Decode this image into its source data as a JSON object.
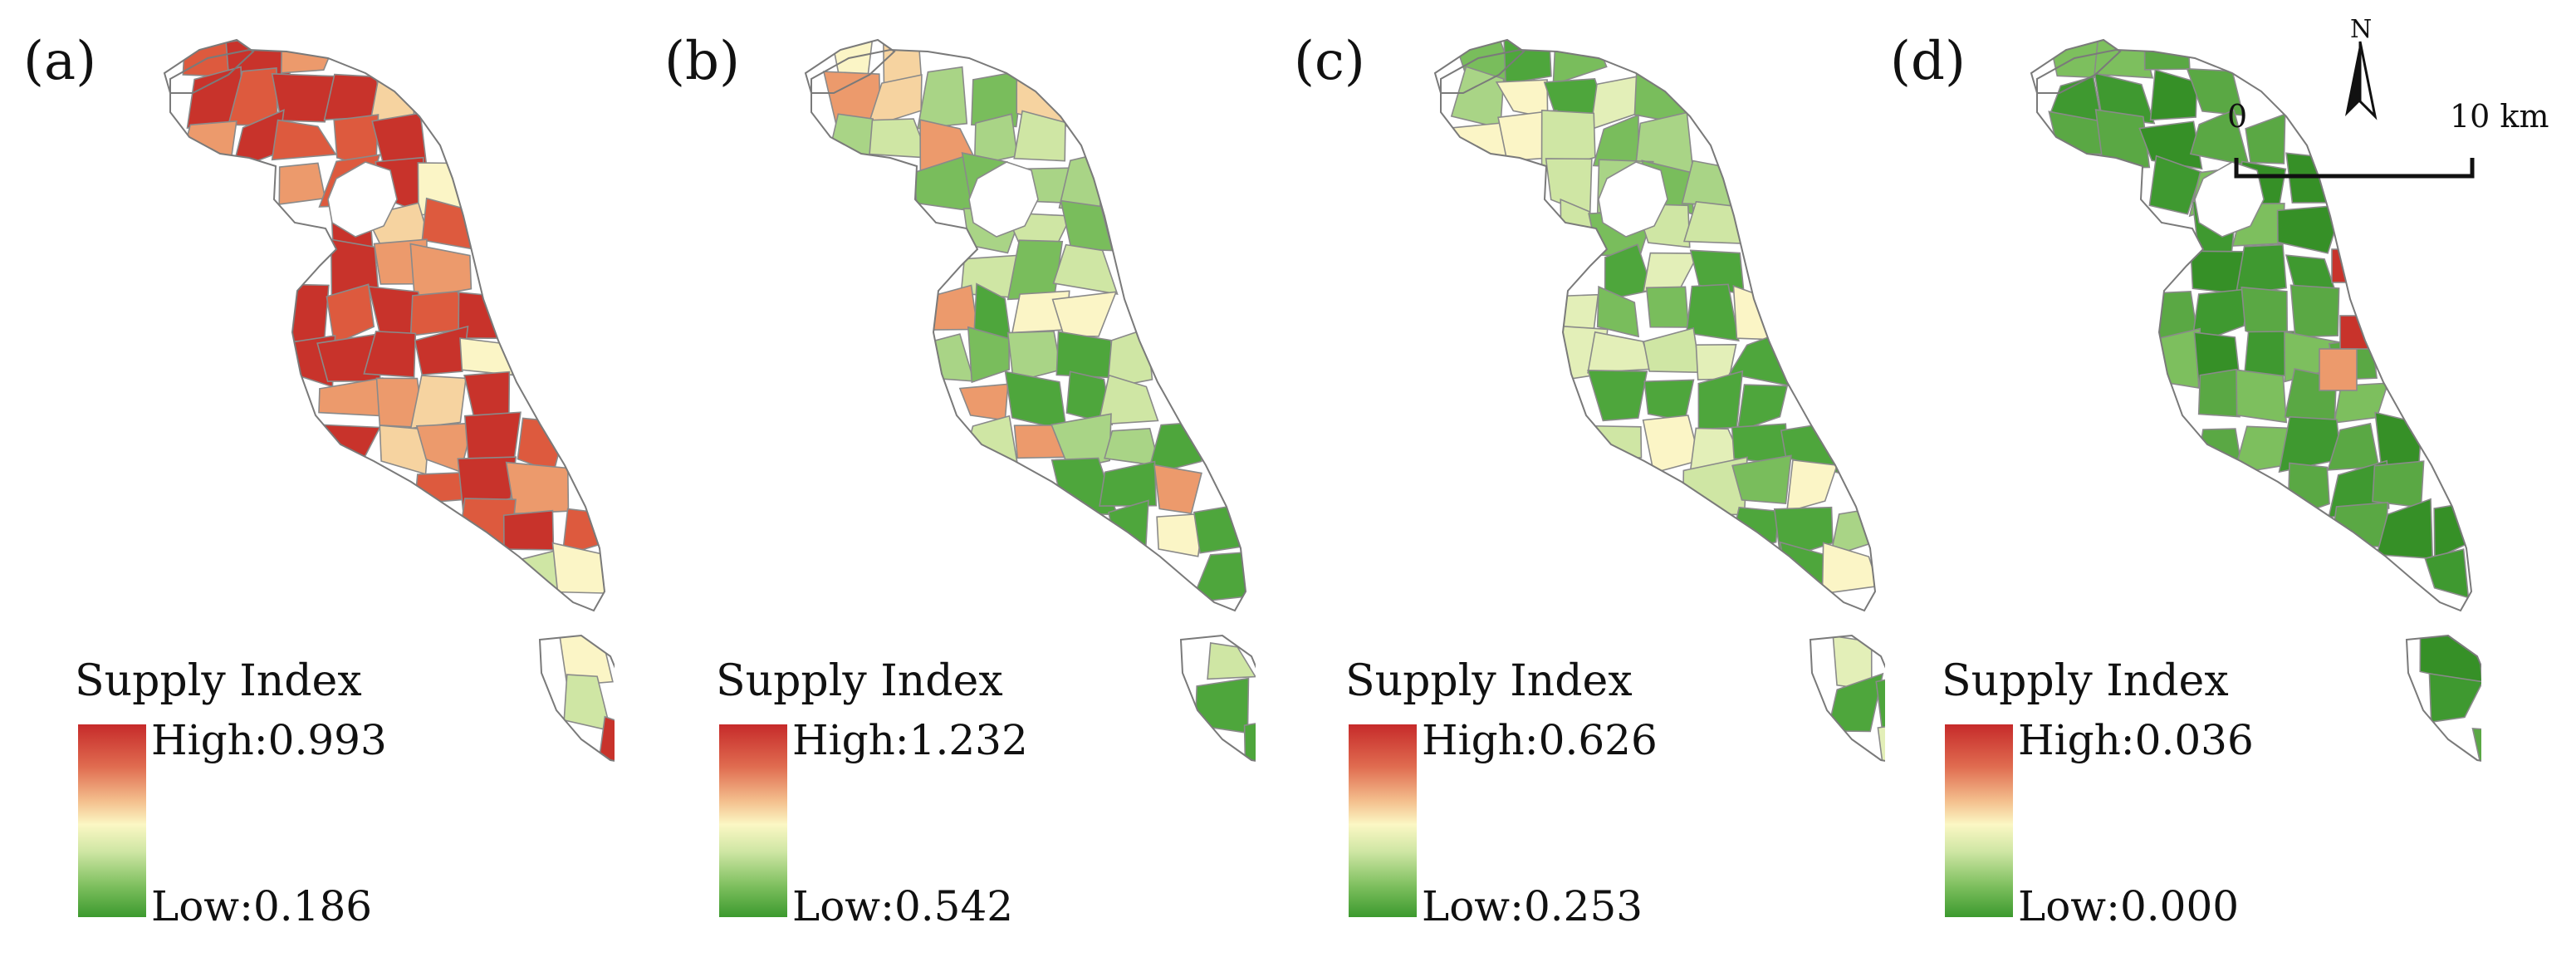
{
  "figure": {
    "legend_title": "Supply Index",
    "north_label": "N",
    "scale": {
      "start": "0",
      "end": "10 km"
    },
    "ramp_colors": [
      "#c62a2a",
      "#e06c50",
      "#f4c08e",
      "#fbf7c4",
      "#cfe6a4",
      "#7dbf5e",
      "#3c9a2e"
    ],
    "panels": [
      {
        "label": "(a)",
        "high": "High:0.993",
        "low": "Low:0.186",
        "palette": [
          "#c8332b",
          "#dd5a3e",
          "#ec9a6c",
          "#f6d3a0",
          "#fbf5c6",
          "#cfe6a4",
          "#a9d486"
        ],
        "weights": [
          0.3,
          0.25,
          0.18,
          0.1,
          0.07,
          0.05,
          0.05
        ]
      },
      {
        "label": "(b)",
        "high": "High:1.232",
        "low": "Low:0.542",
        "palette": [
          "#c8332b",
          "#ec9a6c",
          "#f6d3a0",
          "#fbf5c6",
          "#cfe6a4",
          "#a9d486",
          "#79bd5c",
          "#4ea63c"
        ],
        "weights": [
          0.03,
          0.08,
          0.08,
          0.12,
          0.22,
          0.25,
          0.14,
          0.08
        ]
      },
      {
        "label": "(c)",
        "high": "High:0.626",
        "low": "Low:0.253",
        "palette": [
          "#c8332b",
          "#ec9a6c",
          "#fbf5c6",
          "#e3efb8",
          "#cfe6a4",
          "#a9d486",
          "#79bd5c",
          "#4ea63c"
        ],
        "weights": [
          0.02,
          0.03,
          0.12,
          0.18,
          0.2,
          0.18,
          0.15,
          0.12
        ]
      },
      {
        "label": "(d)",
        "high": "High:0.036",
        "low": "Low:0.000",
        "palette": [
          "#c8332b",
          "#ec9a6c",
          "#7dbf5e",
          "#5aa844",
          "#3f9930",
          "#369027"
        ],
        "weights": [
          0.02,
          0.01,
          0.12,
          0.3,
          0.35,
          0.2
        ]
      }
    ]
  }
}
